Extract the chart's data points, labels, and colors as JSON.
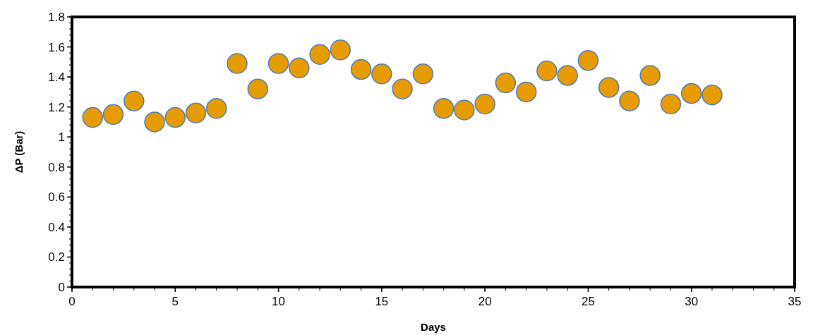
{
  "chart_data": {
    "type": "scatter",
    "xlabel": "Days",
    "ylabel": "ΔP (Bar)",
    "x": [
      1,
      2,
      3,
      4,
      5,
      6,
      7,
      8,
      9,
      10,
      11,
      12,
      13,
      14,
      15,
      16,
      17,
      18,
      19,
      20,
      21,
      22,
      23,
      24,
      25,
      26,
      27,
      28,
      29,
      30,
      31
    ],
    "series": [
      {
        "color": "#e69b00",
        "values": [
          1.13,
          1.15,
          1.24,
          1.1,
          1.13,
          1.16,
          1.19,
          1.49,
          1.32,
          1.49,
          1.46,
          1.55,
          1.58,
          1.45,
          1.42,
          1.32,
          1.42,
          1.19,
          1.18,
          1.22,
          1.36,
          1.3,
          1.44,
          1.41,
          1.51,
          1.33,
          1.24,
          1.41,
          1.22,
          1.29,
          1.28
        ]
      }
    ],
    "xlim": [
      0,
      35
    ],
    "xticks": [
      0,
      5,
      10,
      15,
      20,
      25,
      30,
      35
    ],
    "ylim": [
      0,
      1.8
    ],
    "yticks": [
      0,
      {
        "value": 0.2,
        "label": "0.2"
      },
      {
        "value": 0.4,
        "label": "0.4"
      },
      {
        "value": 0.6,
        "label": "0.6"
      },
      {
        "value": 0.8,
        "label": "0.8"
      },
      1,
      {
        "value": 1.2,
        "label": "1.2"
      },
      {
        "value": 1.4,
        "label": "1.4"
      },
      {
        "value": 1.6,
        "label": "1.6"
      },
      {
        "value": 1.8,
        "label": "1.8"
      }
    ],
    "grid": false,
    "marker": "circle"
  }
}
